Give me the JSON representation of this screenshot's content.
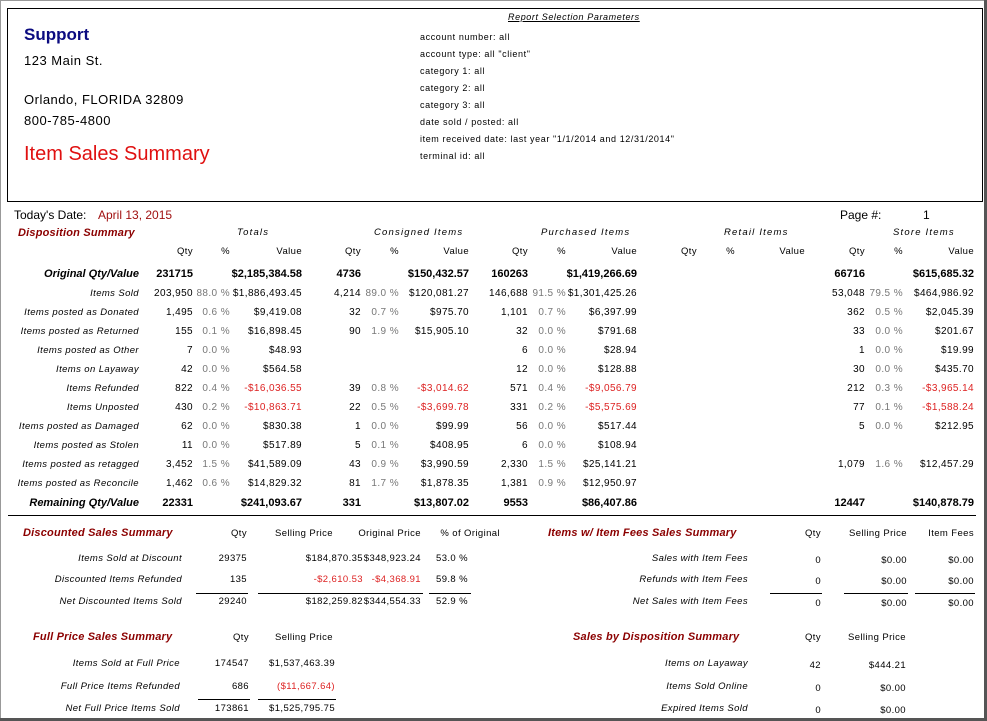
{
  "company": {
    "name": "Support",
    "address1": "123 Main St.",
    "city_state_zip": "Orlando, FLORIDA 32809",
    "phone": "800-785-4800",
    "report_title": "Item Sales Summary"
  },
  "params": {
    "title": "Report Selection Parameters",
    "lines": [
      "account number: all",
      "account type: all \"client\"",
      "category 1: all",
      "category 2: all",
      "category 3: all",
      "date sold / posted: all",
      "item received date: last year \"1/1/2014 and 12/31/2014\"",
      "terminal id: all"
    ]
  },
  "today": {
    "label": "Today's Date:",
    "value": "April 13, 2015"
  },
  "page": {
    "label": "Page #:",
    "value": "1"
  },
  "disposition": {
    "title": "Disposition Summary",
    "groups": [
      "Totals",
      "Consigned Items",
      "Purchased Items",
      "Retail Items",
      "Store Items"
    ],
    "col_qty": "Qty",
    "col_pct": "%",
    "col_value": "Value",
    "rows": [
      {
        "label": "Original Qty/Value",
        "style": "bold",
        "v": [
          "231715",
          "",
          "$2,185,384.58",
          "4736",
          "",
          "$150,432.57",
          "160263",
          "",
          "$1,419,266.69",
          "",
          "",
          "",
          "66716",
          "",
          "$615,685.32"
        ]
      },
      {
        "label": "Items Sold",
        "style": "",
        "v": [
          "203,950",
          "88.0 %",
          "$1,886,493.45",
          "4,214",
          "89.0 %",
          "$120,081.27",
          "146,688",
          "91.5 %",
          "$1,301,425.26",
          "",
          "",
          "",
          "53,048",
          "79.5 %",
          "$464,986.92"
        ]
      },
      {
        "label": "Items posted as Donated",
        "style": "",
        "v": [
          "1,495",
          "0.6 %",
          "$9,419.08",
          "32",
          "0.7 %",
          "$975.70",
          "1,101",
          "0.7 %",
          "$6,397.99",
          "",
          "",
          "",
          "362",
          "0.5 %",
          "$2,045.39"
        ]
      },
      {
        "label": "Items posted as Returned",
        "style": "",
        "v": [
          "155",
          "0.1 %",
          "$16,898.45",
          "90",
          "1.9 %",
          "$15,905.10",
          "32",
          "0.0 %",
          "$791.68",
          "",
          "",
          "",
          "33",
          "0.0 %",
          "$201.67"
        ]
      },
      {
        "label": "Items posted as Other",
        "style": "",
        "v": [
          "7",
          "0.0 %",
          "$48.93",
          "",
          "",
          "",
          "6",
          "0.0 %",
          "$28.94",
          "",
          "",
          "",
          "1",
          "0.0 %",
          "$19.99"
        ]
      },
      {
        "label": "Items on Layaway",
        "style": "",
        "v": [
          "42",
          "0.0 %",
          "$564.58",
          "",
          "",
          "",
          "12",
          "0.0 %",
          "$128.88",
          "",
          "",
          "",
          "30",
          "0.0 %",
          "$435.70"
        ]
      },
      {
        "label": "Items Refunded",
        "style": "neg",
        "v": [
          "822",
          "0.4 %",
          "-$16,036.55",
          "39",
          "0.8 %",
          "-$3,014.62",
          "571",
          "0.4 %",
          "-$9,056.79",
          "",
          "",
          "",
          "212",
          "0.3 %",
          "-$3,965.14"
        ]
      },
      {
        "label": "Items Unposted",
        "style": "neg",
        "v": [
          "430",
          "0.2 %",
          "-$10,863.71",
          "22",
          "0.5 %",
          "-$3,699.78",
          "331",
          "0.2 %",
          "-$5,575.69",
          "",
          "",
          "",
          "77",
          "0.1 %",
          "-$1,588.24"
        ]
      },
      {
        "label": "Items posted as Damaged",
        "style": "",
        "v": [
          "62",
          "0.0 %",
          "$830.38",
          "1",
          "0.0 %",
          "$99.99",
          "56",
          "0.0 %",
          "$517.44",
          "",
          "",
          "",
          "5",
          "0.0 %",
          "$212.95"
        ]
      },
      {
        "label": "Items posted as Stolen",
        "style": "",
        "v": [
          "11",
          "0.0 %",
          "$517.89",
          "5",
          "0.1 %",
          "$408.95",
          "6",
          "0.0 %",
          "$108.94",
          "",
          "",
          "",
          "",
          "",
          ""
        ]
      },
      {
        "label": "Items posted as retagged",
        "style": "",
        "v": [
          "3,452",
          "1.5 %",
          "$41,589.09",
          "43",
          "0.9 %",
          "$3,990.59",
          "2,330",
          "1.5 %",
          "$25,141.21",
          "",
          "",
          "",
          "1,079",
          "1.6 %",
          "$12,457.29"
        ]
      },
      {
        "label": "Items posted as Reconcile",
        "style": "",
        "v": [
          "1,462",
          "0.6 %",
          "$14,829.32",
          "81",
          "1.7 %",
          "$1,878.35",
          "1,381",
          "0.9 %",
          "$12,950.97",
          "",
          "",
          "",
          "",
          "",
          ""
        ]
      },
      {
        "label": "Remaining Qty/Value",
        "style": "bold",
        "v": [
          "22331",
          "",
          "$241,093.67",
          "331",
          "",
          "$13,807.02",
          "9553",
          "",
          "$86,407.86",
          "",
          "",
          "",
          "12447",
          "",
          "$140,878.79"
        ]
      }
    ]
  },
  "discounted": {
    "title": "Discounted Sales Summary",
    "headers": [
      "Qty",
      "Selling Price",
      "Original Price",
      "% of Original"
    ],
    "rows": [
      {
        "label": "Items Sold at Discount",
        "v": [
          "29375",
          "$184,870.35",
          "$348,923.24",
          "53.0 %"
        ],
        "neg": false
      },
      {
        "label": "Discounted Items Refunded",
        "v": [
          "135",
          "-$2,610.53",
          "-$4,368.91",
          "59.8 %"
        ],
        "neg": true
      },
      {
        "label": "Net Discounted Items Sold",
        "v": [
          "29240",
          "$182,259.82",
          "$344,554.33",
          "52.9 %"
        ],
        "neg": false
      }
    ]
  },
  "fees": {
    "title": "Items w/ Item Fees Sales Summary",
    "headers": [
      "Qty",
      "Selling Price",
      "Item Fees"
    ],
    "rows": [
      {
        "label": "Sales with Item Fees",
        "v": [
          "0",
          "$0.00",
          "$0.00"
        ]
      },
      {
        "label": "Refunds with Item Fees",
        "v": [
          "0",
          "$0.00",
          "$0.00"
        ]
      },
      {
        "label": "Net Sales with Item Fees",
        "v": [
          "0",
          "$0.00",
          "$0.00"
        ]
      }
    ]
  },
  "fullprice": {
    "title": "Full Price Sales Summary",
    "headers": [
      "Qty",
      "Selling Price"
    ],
    "rows": [
      {
        "label": "Items Sold at Full Price",
        "v": [
          "174547",
          "$1,537,463.39"
        ],
        "neg": false
      },
      {
        "label": "Full Price Items Refunded",
        "v": [
          "686",
          "($11,667.64)"
        ],
        "neg": true
      },
      {
        "label": "Net Full Price Items Sold",
        "v": [
          "173861",
          "$1,525,795.75"
        ],
        "neg": false
      }
    ]
  },
  "bydisp": {
    "title": "Sales by Disposition Summary",
    "headers": [
      "Qty",
      "Selling Price"
    ],
    "rows": [
      {
        "label": "Items on Layaway",
        "v": [
          "42",
          "$444.21"
        ]
      },
      {
        "label": "Items Sold Online",
        "v": [
          "0",
          "$0.00"
        ]
      },
      {
        "label": "Expired Items Sold",
        "v": [
          "0",
          "$0.00"
        ]
      }
    ]
  }
}
